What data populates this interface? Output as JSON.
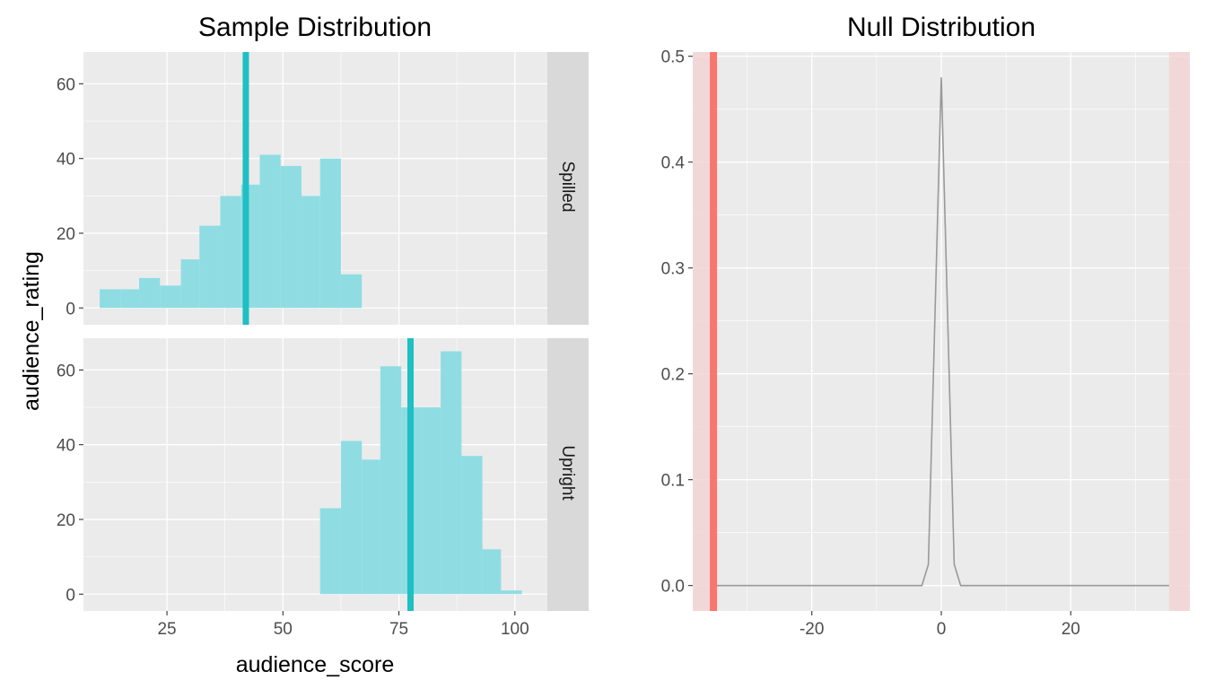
{
  "chart_data": [
    {
      "type": "bar",
      "title": "Sample Distribution",
      "xlabel": "audience_score",
      "ylabel": "audience_rating",
      "xlim": [
        7,
        107
      ],
      "ylim": [
        -4.5,
        68.5
      ],
      "x_ticks": [
        25,
        50,
        75,
        100
      ],
      "y_ticks": [
        0,
        20,
        40,
        60
      ],
      "bar_color": "#8FDDE3",
      "mean_line_color": "#1FBFC3",
      "grid": true,
      "facets": [
        {
          "label": "Spilled",
          "mean": 42,
          "bins": [
            {
              "x0": 10.5,
              "x1": 15,
              "count": 5
            },
            {
              "x0": 15,
              "x1": 19,
              "count": 5
            },
            {
              "x0": 19,
              "x1": 23.5,
              "count": 8
            },
            {
              "x0": 23.5,
              "x1": 28,
              "count": 6
            },
            {
              "x0": 28,
              "x1": 32,
              "count": 13
            },
            {
              "x0": 32,
              "x1": 36.5,
              "count": 22
            },
            {
              "x0": 36.5,
              "x1": 41,
              "count": 30
            },
            {
              "x0": 41,
              "x1": 45,
              "count": 33
            },
            {
              "x0": 45,
              "x1": 49.5,
              "count": 41
            },
            {
              "x0": 49.5,
              "x1": 54,
              "count": 38
            },
            {
              "x0": 54,
              "x1": 58,
              "count": 30
            },
            {
              "x0": 58,
              "x1": 62.5,
              "count": 40
            },
            {
              "x0": 62.5,
              "x1": 67,
              "count": 9
            }
          ]
        },
        {
          "label": "Upright",
          "mean": 77.5,
          "bins": [
            {
              "x0": 58,
              "x1": 62.5,
              "count": 23
            },
            {
              "x0": 62.5,
              "x1": 67,
              "count": 41
            },
            {
              "x0": 67,
              "x1": 71,
              "count": 36
            },
            {
              "x0": 71,
              "x1": 75.5,
              "count": 61
            },
            {
              "x0": 75.5,
              "x1": 80,
              "count": 50
            },
            {
              "x0": 80,
              "x1": 84,
              "count": 50
            },
            {
              "x0": 84,
              "x1": 88.5,
              "count": 65
            },
            {
              "x0": 88.5,
              "x1": 93,
              "count": 37
            },
            {
              "x0": 93,
              "x1": 97,
              "count": 12
            },
            {
              "x0": 97,
              "x1": 101.5,
              "count": 1
            }
          ]
        }
      ]
    },
    {
      "type": "line",
      "title": "Null Distribution",
      "xlabel": "",
      "ylabel": "",
      "xlim": [
        -38.4,
        38.4
      ],
      "ylim": [
        -0.024,
        0.504
      ],
      "x_ticks": [
        -20,
        0,
        20
      ],
      "y_ticks": [
        0.0,
        0.1,
        0.2,
        0.3,
        0.4,
        0.5
      ],
      "y_tick_labels": [
        "0.0",
        "0.1",
        "0.2",
        "0.3",
        "0.4",
        "0.5"
      ],
      "grid": true,
      "line_color": "#999999",
      "series": [
        {
          "x": [
            -35.2,
            -3,
            -2,
            0,
            2,
            3,
            35.2
          ],
          "y": [
            0,
            0,
            0.02,
            0.48,
            0.02,
            0,
            0
          ]
        }
      ],
      "observed_statistic": -35.2,
      "observed_color": "#F8766D",
      "shade_color": "#F3D4D6",
      "shaded_regions": [
        {
          "from": -38.4,
          "to": -35.2
        },
        {
          "from": 35.2,
          "to": 38.4
        }
      ]
    }
  ]
}
